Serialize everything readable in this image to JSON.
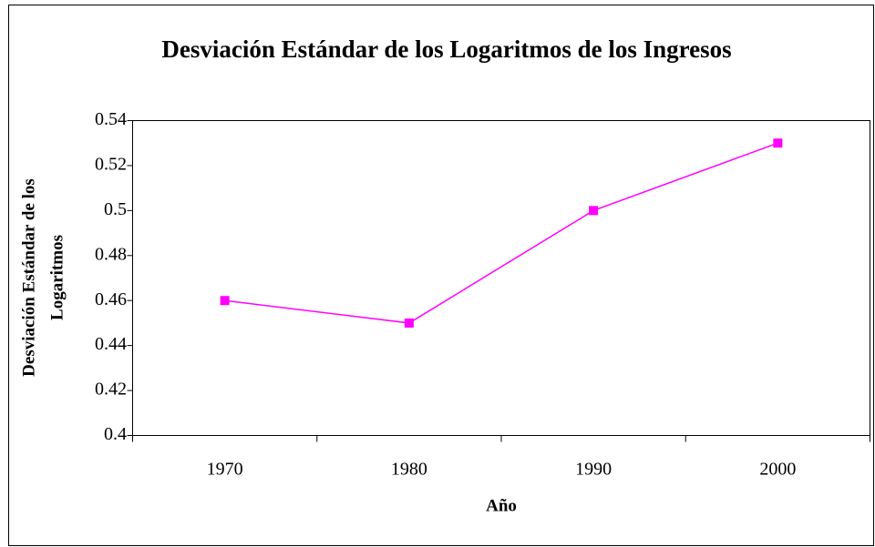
{
  "chart_data": {
    "type": "line",
    "title": "Desviación Estándar de los Logaritmos de los Ingresos",
    "x_label": "Año",
    "y_label": [
      "Desviación Estándar de los",
      "Logaritmos"
    ],
    "categories": [
      "1970",
      "1980",
      "1990",
      "2000"
    ],
    "series": [
      {
        "name": null,
        "color": "#ff00ff",
        "values": [
          0.46,
          0.45,
          0.5,
          0.53
        ]
      }
    ],
    "ylim": [
      0.4,
      0.54
    ],
    "yticks": [
      0.4,
      0.42,
      0.44,
      0.46,
      0.48,
      0.5,
      0.52,
      0.54
    ],
    "grid": false
  }
}
